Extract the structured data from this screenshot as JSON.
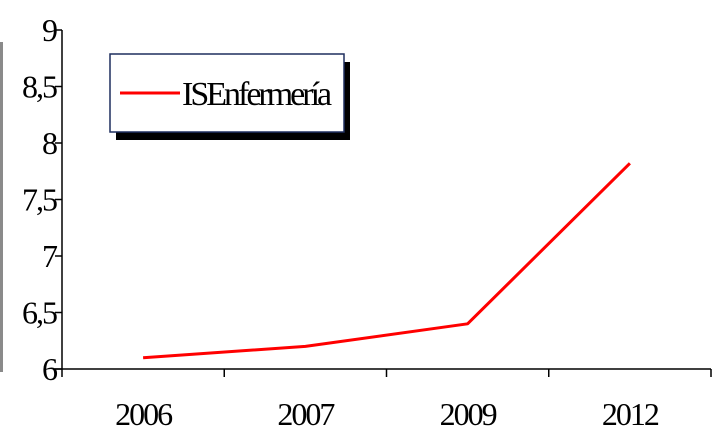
{
  "chart_data": {
    "type": "line",
    "title": "",
    "xlabel": "",
    "ylabel": "",
    "categories": [
      "2006",
      "2007",
      "2009",
      "2012"
    ],
    "series": [
      {
        "name": "ISEnfermería",
        "values": [
          6.1,
          6.2,
          6.4,
          7.82
        ],
        "color": "#ff0000"
      }
    ],
    "ylim": [
      6,
      9
    ],
    "yticks": [
      6,
      6.5,
      7,
      7.5,
      8,
      8.5,
      9
    ],
    "ytick_labels": [
      "6",
      "6,5",
      "7",
      "7,5",
      "8",
      "8,5",
      "9"
    ],
    "grid": false,
    "legend_position": "top-left",
    "colors": {
      "axis": "#000000",
      "legend_border": "#1f2f5f",
      "legend_shadow": "#000000",
      "line": "#ff0000",
      "left_edge_strip": "#8a8a8a"
    }
  }
}
